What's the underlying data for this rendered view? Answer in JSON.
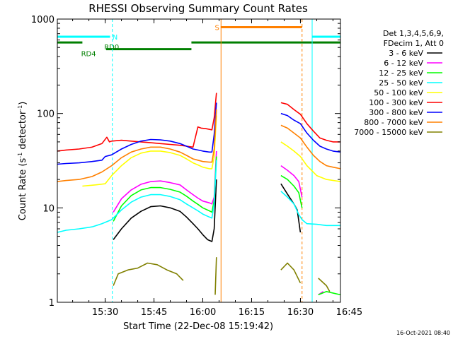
{
  "chart_data": {
    "type": "line",
    "title": "RHESSI Observing Summary Count Rates",
    "xlabel": "Start Time (22-Dec-08 15:19:42)",
    "ylabel_main": "Count Rate (s",
    "ylabel_sup1": "-1",
    "ylabel_mid": " detector",
    "ylabel_sup2": "-1",
    "ylabel_end": ")",
    "yscale": "log",
    "ylim": [
      1,
      1000
    ],
    "xlim_minutes": [
      15.3,
      102.3
    ],
    "x_tick_labels": [
      "15:30",
      "15:45",
      "16:00",
      "16:15",
      "16:30",
      "16:45"
    ],
    "x_tick_minutes": [
      30,
      45,
      60,
      75,
      90,
      105
    ],
    "y_tick_labels": [
      "1",
      "10",
      "100",
      "1000"
    ],
    "y_tick_values": [
      1,
      10,
      100,
      1000
    ],
    "legend_header": [
      "Det 1,3,4,5,6,9,",
      "FDecim 1, Att 0"
    ],
    "series": [
      {
        "name": "3 - 6 keV",
        "color": "#000000",
        "points": [
          [
            15.3,
            null
          ],
          [
            32,
            null
          ],
          [
            32.5,
            4.6
          ],
          [
            35,
            6
          ],
          [
            38,
            7.8
          ],
          [
            41,
            9.2
          ],
          [
            44,
            10.3
          ],
          [
            47,
            10.5
          ],
          [
            50,
            10
          ],
          [
            53,
            9.2
          ],
          [
            55,
            8
          ],
          [
            57,
            6.8
          ],
          [
            58.5,
            6
          ],
          [
            60,
            5.2
          ],
          [
            61.5,
            4.6
          ],
          [
            62.8,
            4.4
          ],
          [
            63.5,
            6
          ],
          [
            64.2,
            20
          ],
          [
            64.6,
            null
          ],
          [
            83.5,
            null
          ],
          [
            84,
            18
          ],
          [
            86,
            14
          ],
          [
            88,
            11
          ],
          [
            89,
            9.5
          ],
          [
            90,
            5.5
          ],
          [
            90.5,
            null
          ],
          [
            102.3,
            null
          ]
        ]
      },
      {
        "name": "6 - 12 keV",
        "color": "#ff00ff",
        "points": [
          [
            15.3,
            null
          ],
          [
            32,
            null
          ],
          [
            32.5,
            9
          ],
          [
            35,
            12.5
          ],
          [
            38,
            15.5
          ],
          [
            41,
            17.8
          ],
          [
            44,
            19
          ],
          [
            47,
            19.3
          ],
          [
            50,
            18.5
          ],
          [
            53,
            17.5
          ],
          [
            55,
            15.5
          ],
          [
            57,
            13.8
          ],
          [
            58.5,
            12.7
          ],
          [
            60,
            11.8
          ],
          [
            62,
            11.3
          ],
          [
            62.8,
            11
          ],
          [
            63.5,
            13
          ],
          [
            64.2,
            40
          ],
          [
            64.6,
            null
          ],
          [
            83.5,
            null
          ],
          [
            84,
            28
          ],
          [
            86,
            25
          ],
          [
            88,
            22
          ],
          [
            89.5,
            19
          ],
          [
            90.5,
            13
          ],
          [
            91,
            null
          ],
          [
            95,
            null
          ],
          [
            95.5,
            1.2
          ],
          [
            97,
            1.3
          ],
          [
            98,
            null
          ],
          [
            102.3,
            null
          ]
        ]
      },
      {
        "name": "12 - 25 keV",
        "color": "#00ff00",
        "points": [
          [
            15.3,
            null
          ],
          [
            32,
            null
          ],
          [
            32.5,
            7.2
          ],
          [
            35,
            10.5
          ],
          [
            38,
            13.5
          ],
          [
            41,
            15.5
          ],
          [
            44,
            16.4
          ],
          [
            47,
            16.4
          ],
          [
            50,
            15.7
          ],
          [
            53,
            14.7
          ],
          [
            55,
            13.3
          ],
          [
            57,
            11.8
          ],
          [
            58.5,
            10.9
          ],
          [
            60,
            10
          ],
          [
            62,
            9.3
          ],
          [
            62.8,
            9
          ],
          [
            63.5,
            12
          ],
          [
            64.2,
            35
          ],
          [
            64.6,
            null
          ],
          [
            83.5,
            null
          ],
          [
            84,
            22
          ],
          [
            86,
            20
          ],
          [
            88,
            17
          ],
          [
            89.5,
            14.5
          ],
          [
            90.5,
            10
          ],
          [
            91,
            null
          ],
          [
            95,
            null
          ],
          [
            95.5,
            1.2
          ],
          [
            98,
            1.3
          ],
          [
            102.3,
            1.2
          ]
        ]
      },
      {
        "name": "25 - 50 keV",
        "color": "#00ffff",
        "points": [
          [
            15.3,
            5.5
          ],
          [
            18,
            5.8
          ],
          [
            22,
            6
          ],
          [
            26,
            6.3
          ],
          [
            29,
            6.8
          ],
          [
            32,
            7.5
          ],
          [
            35,
            9.5
          ],
          [
            38,
            11.5
          ],
          [
            41,
            13
          ],
          [
            44,
            13.8
          ],
          [
            47,
            13.8
          ],
          [
            50,
            13.2
          ],
          [
            53,
            12.2
          ],
          [
            55,
            11
          ],
          [
            57,
            10
          ],
          [
            58.5,
            9.3
          ],
          [
            60,
            8.6
          ],
          [
            62,
            8
          ],
          [
            62.8,
            7.8
          ],
          [
            63.5,
            11
          ],
          [
            64.2,
            32
          ],
          [
            64.6,
            null
          ],
          [
            83.5,
            null
          ],
          [
            84,
            15
          ],
          [
            86,
            13
          ],
          [
            88,
            11
          ],
          [
            89.5,
            8.5
          ],
          [
            90.5,
            7.5
          ],
          [
            92,
            6.8
          ],
          [
            95,
            6.7
          ],
          [
            98,
            6.5
          ],
          [
            102.3,
            6.5
          ]
        ]
      },
      {
        "name": "50 - 100 keV",
        "color": "#ffff00",
        "points": [
          [
            15.3,
            null
          ],
          [
            22,
            null
          ],
          [
            23,
            17
          ],
          [
            27,
            17.5
          ],
          [
            30,
            18
          ],
          [
            32,
            22
          ],
          [
            35,
            28
          ],
          [
            38,
            34
          ],
          [
            41,
            38
          ],
          [
            44,
            40
          ],
          [
            47,
            40
          ],
          [
            50,
            38.5
          ],
          [
            53,
            36
          ],
          [
            55,
            33
          ],
          [
            57,
            30
          ],
          [
            58.5,
            28.5
          ],
          [
            60,
            27
          ],
          [
            62,
            26
          ],
          [
            62.8,
            26
          ],
          [
            63.5,
            35
          ],
          [
            64.2,
            95
          ],
          [
            64.6,
            null
          ],
          [
            83.5,
            null
          ],
          [
            84,
            50
          ],
          [
            86,
            45
          ],
          [
            88,
            40
          ],
          [
            90,
            35
          ],
          [
            92,
            28
          ],
          [
            95,
            22
          ],
          [
            98,
            20
          ],
          [
            102.3,
            19
          ]
        ]
      },
      {
        "name": "100 - 300 keV",
        "color": "#ff0000",
        "points": [
          [
            15.3,
            40
          ],
          [
            18,
            41
          ],
          [
            22,
            42
          ],
          [
            26,
            44
          ],
          [
            29,
            48
          ],
          [
            30.5,
            56
          ],
          [
            31.3,
            50
          ],
          [
            32,
            51
          ],
          [
            35,
            52
          ],
          [
            38,
            51
          ],
          [
            41,
            50
          ],
          [
            44,
            49
          ],
          [
            47,
            48
          ],
          [
            50,
            47
          ],
          [
            53,
            46
          ],
          [
            55,
            45
          ],
          [
            57,
            44
          ],
          [
            58.5,
            72
          ],
          [
            59.5,
            70
          ],
          [
            61,
            69
          ],
          [
            62.8,
            67
          ],
          [
            63.5,
            90
          ],
          [
            64.2,
            165
          ],
          [
            64.6,
            null
          ],
          [
            83.5,
            null
          ],
          [
            84,
            130
          ],
          [
            86,
            125
          ],
          [
            88,
            110
          ],
          [
            90,
            98
          ],
          [
            92,
            78
          ],
          [
            94,
            65
          ],
          [
            96,
            55
          ],
          [
            98,
            52
          ],
          [
            100,
            50
          ],
          [
            102.3,
            50
          ]
        ]
      },
      {
        "name": "300 - 800 keV",
        "color": "#0000ff",
        "points": [
          [
            15.3,
            29
          ],
          [
            18,
            29.5
          ],
          [
            22,
            30
          ],
          [
            26,
            31
          ],
          [
            29,
            32
          ],
          [
            30,
            35
          ],
          [
            32,
            36.5
          ],
          [
            35,
            42
          ],
          [
            38,
            47
          ],
          [
            41,
            51
          ],
          [
            44,
            53
          ],
          [
            47,
            52.5
          ],
          [
            50,
            51
          ],
          [
            53,
            48
          ],
          [
            55,
            45
          ],
          [
            57,
            42
          ],
          [
            58.5,
            41
          ],
          [
            60,
            40
          ],
          [
            62,
            39
          ],
          [
            62.8,
            39
          ],
          [
            63.5,
            60
          ],
          [
            64.2,
            130
          ],
          [
            64.6,
            null
          ],
          [
            83.5,
            null
          ],
          [
            84,
            100
          ],
          [
            86,
            95
          ],
          [
            88,
            85
          ],
          [
            90,
            78
          ],
          [
            92,
            62
          ],
          [
            94,
            52
          ],
          [
            96,
            45
          ],
          [
            98,
            42
          ],
          [
            100,
            40
          ],
          [
            102.3,
            39
          ]
        ]
      },
      {
        "name": "800 - 7000 keV",
        "color": "#ff8000",
        "points": [
          [
            15.3,
            19
          ],
          [
            18,
            19.5
          ],
          [
            22,
            20
          ],
          [
            26,
            21.5
          ],
          [
            29,
            24
          ],
          [
            32,
            28
          ],
          [
            35,
            34
          ],
          [
            38,
            39
          ],
          [
            41,
            42
          ],
          [
            44,
            44
          ],
          [
            47,
            44
          ],
          [
            50,
            42
          ],
          [
            53,
            39
          ],
          [
            55,
            36
          ],
          [
            57,
            33
          ],
          [
            58.5,
            32
          ],
          [
            60,
            31
          ],
          [
            62,
            30.5
          ],
          [
            62.8,
            30.5
          ],
          [
            63.5,
            42
          ],
          [
            64.2,
            110
          ],
          [
            64.6,
            null
          ],
          [
            83.5,
            null
          ],
          [
            84,
            75
          ],
          [
            86,
            70
          ],
          [
            88,
            62
          ],
          [
            90,
            55
          ],
          [
            92,
            44
          ],
          [
            94,
            36
          ],
          [
            96,
            31
          ],
          [
            98,
            28
          ],
          [
            100,
            27
          ],
          [
            102.3,
            26
          ]
        ]
      },
      {
        "name": "7000 - 15000 keV",
        "color": "#808000",
        "points": [
          [
            15.3,
            null
          ],
          [
            32,
            null
          ],
          [
            32.5,
            1.5
          ],
          [
            34,
            2
          ],
          [
            37,
            2.2
          ],
          [
            40,
            2.3
          ],
          [
            43,
            2.6
          ],
          [
            46,
            2.5
          ],
          [
            49,
            2.2
          ],
          [
            52,
            2
          ],
          [
            54,
            1.7
          ],
          [
            55,
            null
          ],
          [
            63.5,
            null
          ],
          [
            63.8,
            1.2
          ],
          [
            64.2,
            3
          ],
          [
            64.6,
            null
          ],
          [
            83.5,
            null
          ],
          [
            84,
            2.2
          ],
          [
            86,
            2.6
          ],
          [
            88,
            2.2
          ],
          [
            90,
            1.6
          ],
          [
            91,
            null
          ],
          [
            95,
            null
          ],
          [
            95.5,
            1.8
          ],
          [
            98,
            1.5
          ],
          [
            99,
            1.3
          ],
          [
            100,
            null
          ],
          [
            102.3,
            null
          ]
        ]
      }
    ],
    "bars": [
      {
        "label": "N",
        "color": "#00ffff",
        "segments": [
          [
            15.3,
            31.5
          ],
          [
            93.7,
            102.3
          ]
        ],
        "value": 650,
        "label_at": 32.2
      },
      {
        "label": "RD0",
        "color": "#007f00",
        "segments": [
          [
            15.3,
            23
          ],
          [
            56.5,
            102.3
          ]
        ],
        "value": 565,
        "label_at": 29.7
      },
      {
        "label": "RD4",
        "color": "#007f00",
        "segments": [
          [
            30.3,
            56.5
          ]
        ],
        "value": 480,
        "label_at": 22.6
      },
      {
        "label": "S",
        "color": "#ff8000",
        "segments": [
          [
            65.5,
            90.5
          ]
        ],
        "value": 820,
        "label_at": 63.7
      }
    ],
    "vlines": [
      {
        "minute": 15.3,
        "color": "#00ffff",
        "style": "solid"
      },
      {
        "minute": 32.2,
        "color": "#00ffff",
        "style": "dashed"
      },
      {
        "minute": 65.6,
        "color": "#ff8000",
        "style": "solid"
      },
      {
        "minute": 90.5,
        "color": "#ff8000",
        "style": "dashed"
      },
      {
        "minute": 93.6,
        "color": "#00ffff",
        "style": "solid"
      },
      {
        "minute": 102.3,
        "color": "#00ffff",
        "style": "dashed"
      }
    ]
  },
  "footer": {
    "date": "16-Oct-2021 08:40"
  }
}
